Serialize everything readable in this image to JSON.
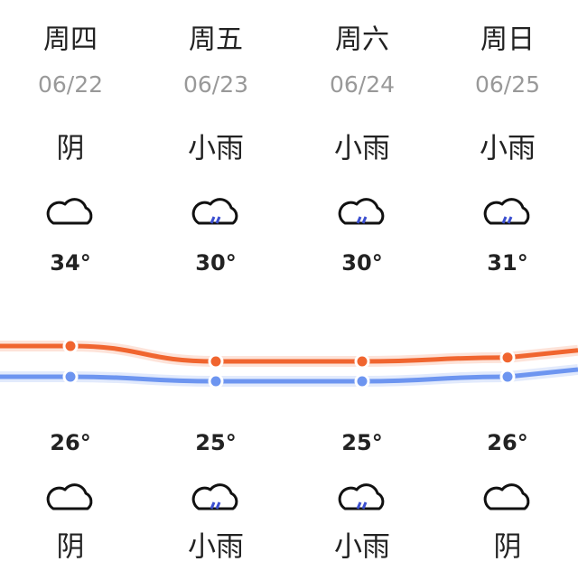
{
  "days": [
    {
      "weekday": "周四",
      "date": "06/22",
      "day_weather": "阴",
      "high": {
        "value": 34,
        "label": "34°"
      },
      "low": {
        "value": 26,
        "label": "26°"
      },
      "night_weather": "阴"
    },
    {
      "weekday": "周五",
      "date": "06/23",
      "day_weather": "小雨",
      "high": {
        "value": 30,
        "label": "30°"
      },
      "low": {
        "value": 25,
        "label": "25°"
      },
      "night_weather": "小雨"
    },
    {
      "weekday": "周六",
      "date": "06/24",
      "day_weather": "小雨",
      "high": {
        "value": 30,
        "label": "30°"
      },
      "low": {
        "value": 25,
        "label": "25°"
      },
      "night_weather": "小雨"
    },
    {
      "weekday": "周日",
      "date": "06/25",
      "day_weather": "小雨",
      "high": {
        "value": 31,
        "label": "31°"
      },
      "low": {
        "value": 26,
        "label": "26°"
      },
      "night_weather": "阴"
    }
  ]
}
